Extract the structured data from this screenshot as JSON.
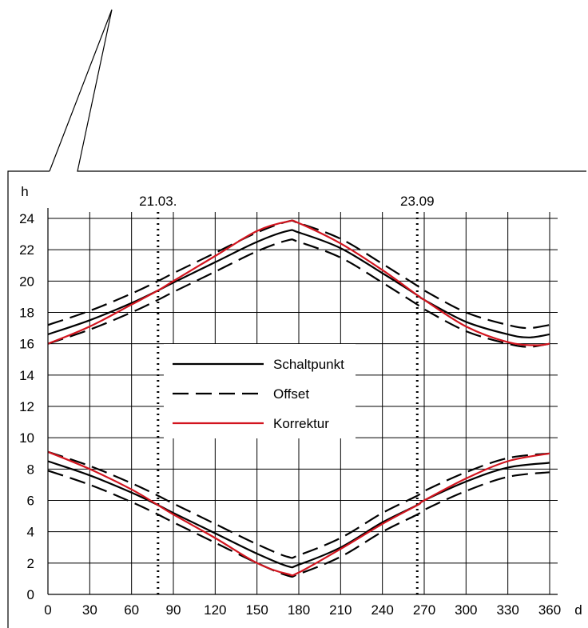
{
  "chart_data": {
    "type": "line",
    "title": "",
    "xlabel": "d",
    "ylabel": "h",
    "xlim": [
      0,
      360
    ],
    "ylim": [
      0,
      24
    ],
    "grid": true,
    "legend_position": "center",
    "x_ticks": [
      0,
      30,
      60,
      90,
      120,
      150,
      180,
      210,
      240,
      270,
      300,
      330,
      360
    ],
    "y_ticks": [
      0,
      2,
      4,
      6,
      8,
      10,
      12,
      14,
      16,
      18,
      20,
      22,
      24
    ],
    "markers": [
      {
        "label": "21.03.",
        "x": 79
      },
      {
        "label": "23.09",
        "x": 265
      }
    ],
    "series": [
      {
        "name": "Schaltpunkt",
        "style": "solid",
        "color": "#000000",
        "group": "evening",
        "x": [
          0,
          30,
          60,
          79,
          90,
          120,
          150,
          172,
          180,
          210,
          240,
          265,
          270,
          300,
          330,
          345,
          360
        ],
        "y": [
          16.6,
          17.5,
          18.6,
          19.4,
          19.9,
          21.2,
          22.5,
          23.2,
          23.1,
          22.1,
          20.5,
          19.1,
          18.8,
          17.4,
          16.6,
          16.4,
          16.6
        ]
      },
      {
        "name": "Offset",
        "style": "dashed",
        "color": "#000000",
        "group": "evening",
        "x": [
          0,
          30,
          60,
          79,
          90,
          120,
          150,
          172,
          180,
          210,
          240,
          265,
          270,
          300,
          330,
          345,
          360
        ],
        "y": [
          17.2,
          18.1,
          19.2,
          20.0,
          20.5,
          21.8,
          23.1,
          23.8,
          23.7,
          22.7,
          21.1,
          19.7,
          19.4,
          18.0,
          17.2,
          17.0,
          17.2
        ]
      },
      {
        "name": "Offset",
        "style": "dashed",
        "color": "#000000",
        "group": "evening",
        "x": [
          0,
          30,
          60,
          79,
          90,
          120,
          150,
          172,
          180,
          210,
          240,
          265,
          270,
          300,
          330,
          345,
          360
        ],
        "y": [
          16.0,
          16.9,
          18.0,
          18.8,
          19.3,
          20.6,
          21.9,
          22.6,
          22.5,
          21.5,
          19.9,
          18.5,
          18.2,
          16.8,
          16.0,
          15.8,
          16.0
        ]
      },
      {
        "name": "Korrektur",
        "style": "solid",
        "color": "#d2141e",
        "group": "evening",
        "x": [
          0,
          30,
          60,
          79,
          90,
          120,
          150,
          172,
          180,
          210,
          240,
          265,
          270,
          300,
          330,
          350,
          360
        ],
        "y": [
          16.0,
          17.1,
          18.5,
          19.4,
          20.0,
          21.6,
          23.2,
          23.8,
          23.7,
          22.4,
          20.7,
          19.1,
          18.8,
          17.1,
          16.1,
          15.9,
          16.0
        ]
      },
      {
        "name": "Schaltpunkt",
        "style": "solid",
        "color": "#000000",
        "group": "morning",
        "x": [
          0,
          30,
          60,
          79,
          90,
          120,
          150,
          172,
          180,
          210,
          240,
          265,
          270,
          300,
          330,
          360
        ],
        "y": [
          8.5,
          7.6,
          6.5,
          5.7,
          5.2,
          3.9,
          2.6,
          1.8,
          1.9,
          3.0,
          4.6,
          5.7,
          6.0,
          7.2,
          8.1,
          8.4
        ]
      },
      {
        "name": "Offset",
        "style": "dashed",
        "color": "#000000",
        "group": "morning",
        "x": [
          0,
          30,
          60,
          79,
          90,
          120,
          150,
          172,
          180,
          210,
          240,
          265,
          270,
          300,
          330,
          360
        ],
        "y": [
          9.1,
          8.2,
          7.1,
          6.3,
          5.8,
          4.5,
          3.2,
          2.4,
          2.5,
          3.6,
          5.2,
          6.3,
          6.6,
          7.8,
          8.7,
          9.0
        ]
      },
      {
        "name": "Offset",
        "style": "dashed",
        "color": "#000000",
        "group": "morning",
        "x": [
          0,
          30,
          60,
          79,
          90,
          120,
          150,
          172,
          180,
          210,
          240,
          265,
          270,
          300,
          330,
          360
        ],
        "y": [
          7.9,
          7.0,
          5.9,
          5.1,
          4.6,
          3.3,
          2.0,
          1.2,
          1.3,
          2.4,
          4.0,
          5.1,
          5.4,
          6.6,
          7.5,
          7.8
        ]
      },
      {
        "name": "Korrektur",
        "style": "solid",
        "color": "#d2141e",
        "group": "morning",
        "x": [
          0,
          30,
          60,
          79,
          90,
          120,
          150,
          172,
          180,
          210,
          240,
          265,
          270,
          300,
          330,
          360
        ],
        "y": [
          9.1,
          8.0,
          6.7,
          5.7,
          5.1,
          3.6,
          2.0,
          1.3,
          1.4,
          2.9,
          4.5,
          5.7,
          6.0,
          7.4,
          8.5,
          9.0
        ]
      }
    ],
    "legend": [
      {
        "label": "Schaltpunkt",
        "style": "solid",
        "color": "#000000"
      },
      {
        "label": "Offset",
        "style": "dashed",
        "color": "#000000"
      },
      {
        "label": "Korrektur",
        "style": "solid",
        "color": "#d2141e"
      }
    ]
  }
}
